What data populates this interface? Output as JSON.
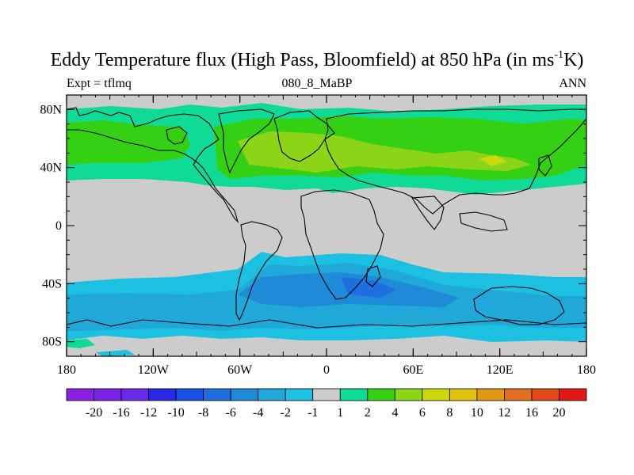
{
  "title": {
    "main": "Eddy Temperature flux (High Pass, Bloomfield) at 850 hPa (in ms",
    "sup": "-1",
    "end": "K)"
  },
  "left_string": "Expt = tflmq",
  "center_string": "080_8_MaBP",
  "right_string": "ANN",
  "map": {
    "projection": "cylindrical-equidistant",
    "lon_range": [
      -180,
      180
    ],
    "lat_range": [
      -90,
      90
    ],
    "x_ticks": [
      {
        "lon": -180,
        "label": "180"
      },
      {
        "lon": -120,
        "label": "120W"
      },
      {
        "lon": -60,
        "label": "60W"
      },
      {
        "lon": 0,
        "label": "0"
      },
      {
        "lon": 60,
        "label": "60E"
      },
      {
        "lon": 120,
        "label": "120E"
      },
      {
        "lon": 180,
        "label": "180"
      }
    ],
    "y_ticks": [
      {
        "lat": 80,
        "label": "80N"
      },
      {
        "lat": 40,
        "label": "40N"
      },
      {
        "lat": 0,
        "label": "0"
      },
      {
        "lat": -40,
        "label": "40S"
      },
      {
        "lat": -80,
        "label": "80S"
      }
    ],
    "land_outline_color": "#000000",
    "missing_color": "#cccccc"
  },
  "colorbar": {
    "colors": [
      "#8b20e0",
      "#7a22e6",
      "#6a2ae8",
      "#2a2ae6",
      "#1a50e8",
      "#1e6ee0",
      "#1f8ad8",
      "#1fa8d8",
      "#1cc0e0",
      "#cccccc",
      "#10da98",
      "#34d014",
      "#8cd418",
      "#ccd80c",
      "#e0c010",
      "#e09818",
      "#e07020",
      "#e04818",
      "#e01818"
    ],
    "labels": [
      "-20",
      "-16",
      "-12",
      "-10",
      "-8",
      "-6",
      "-4",
      "-2",
      "-1",
      "1",
      "2",
      "4",
      "6",
      "8",
      "10",
      "12",
      "16",
      "20"
    ]
  }
}
